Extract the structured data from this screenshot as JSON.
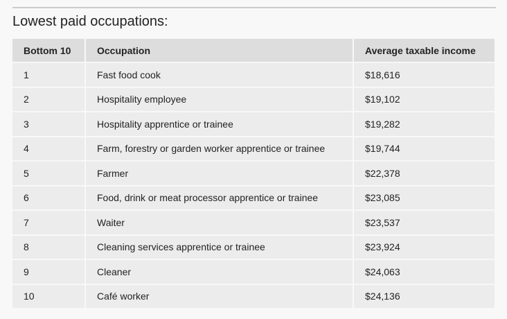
{
  "title": "Lowest paid occupations:",
  "table": {
    "header": [
      "Bottom 10",
      "Occupation",
      "Average taxable income"
    ],
    "rows": [
      [
        "1",
        "Fast food cook",
        "$18,616"
      ],
      [
        "2",
        "Hospitality employee",
        "$19,102"
      ],
      [
        "3",
        "Hospitality apprentice or trainee",
        "$19,282"
      ],
      [
        "4",
        "Farm, forestry or garden worker apprentice or trainee",
        "$19,744"
      ],
      [
        "5",
        "Farmer",
        "$22,378"
      ],
      [
        "6",
        "Food, drink or meat processor apprentice or trainee",
        "$23,085"
      ],
      [
        "7",
        "Waiter",
        "$23,537"
      ],
      [
        "8",
        "Cleaning services apprentice or trainee",
        "$23,924"
      ],
      [
        "9",
        "Cleaner",
        "$24,063"
      ],
      [
        "10",
        "Café worker",
        "$24,136"
      ]
    ]
  }
}
